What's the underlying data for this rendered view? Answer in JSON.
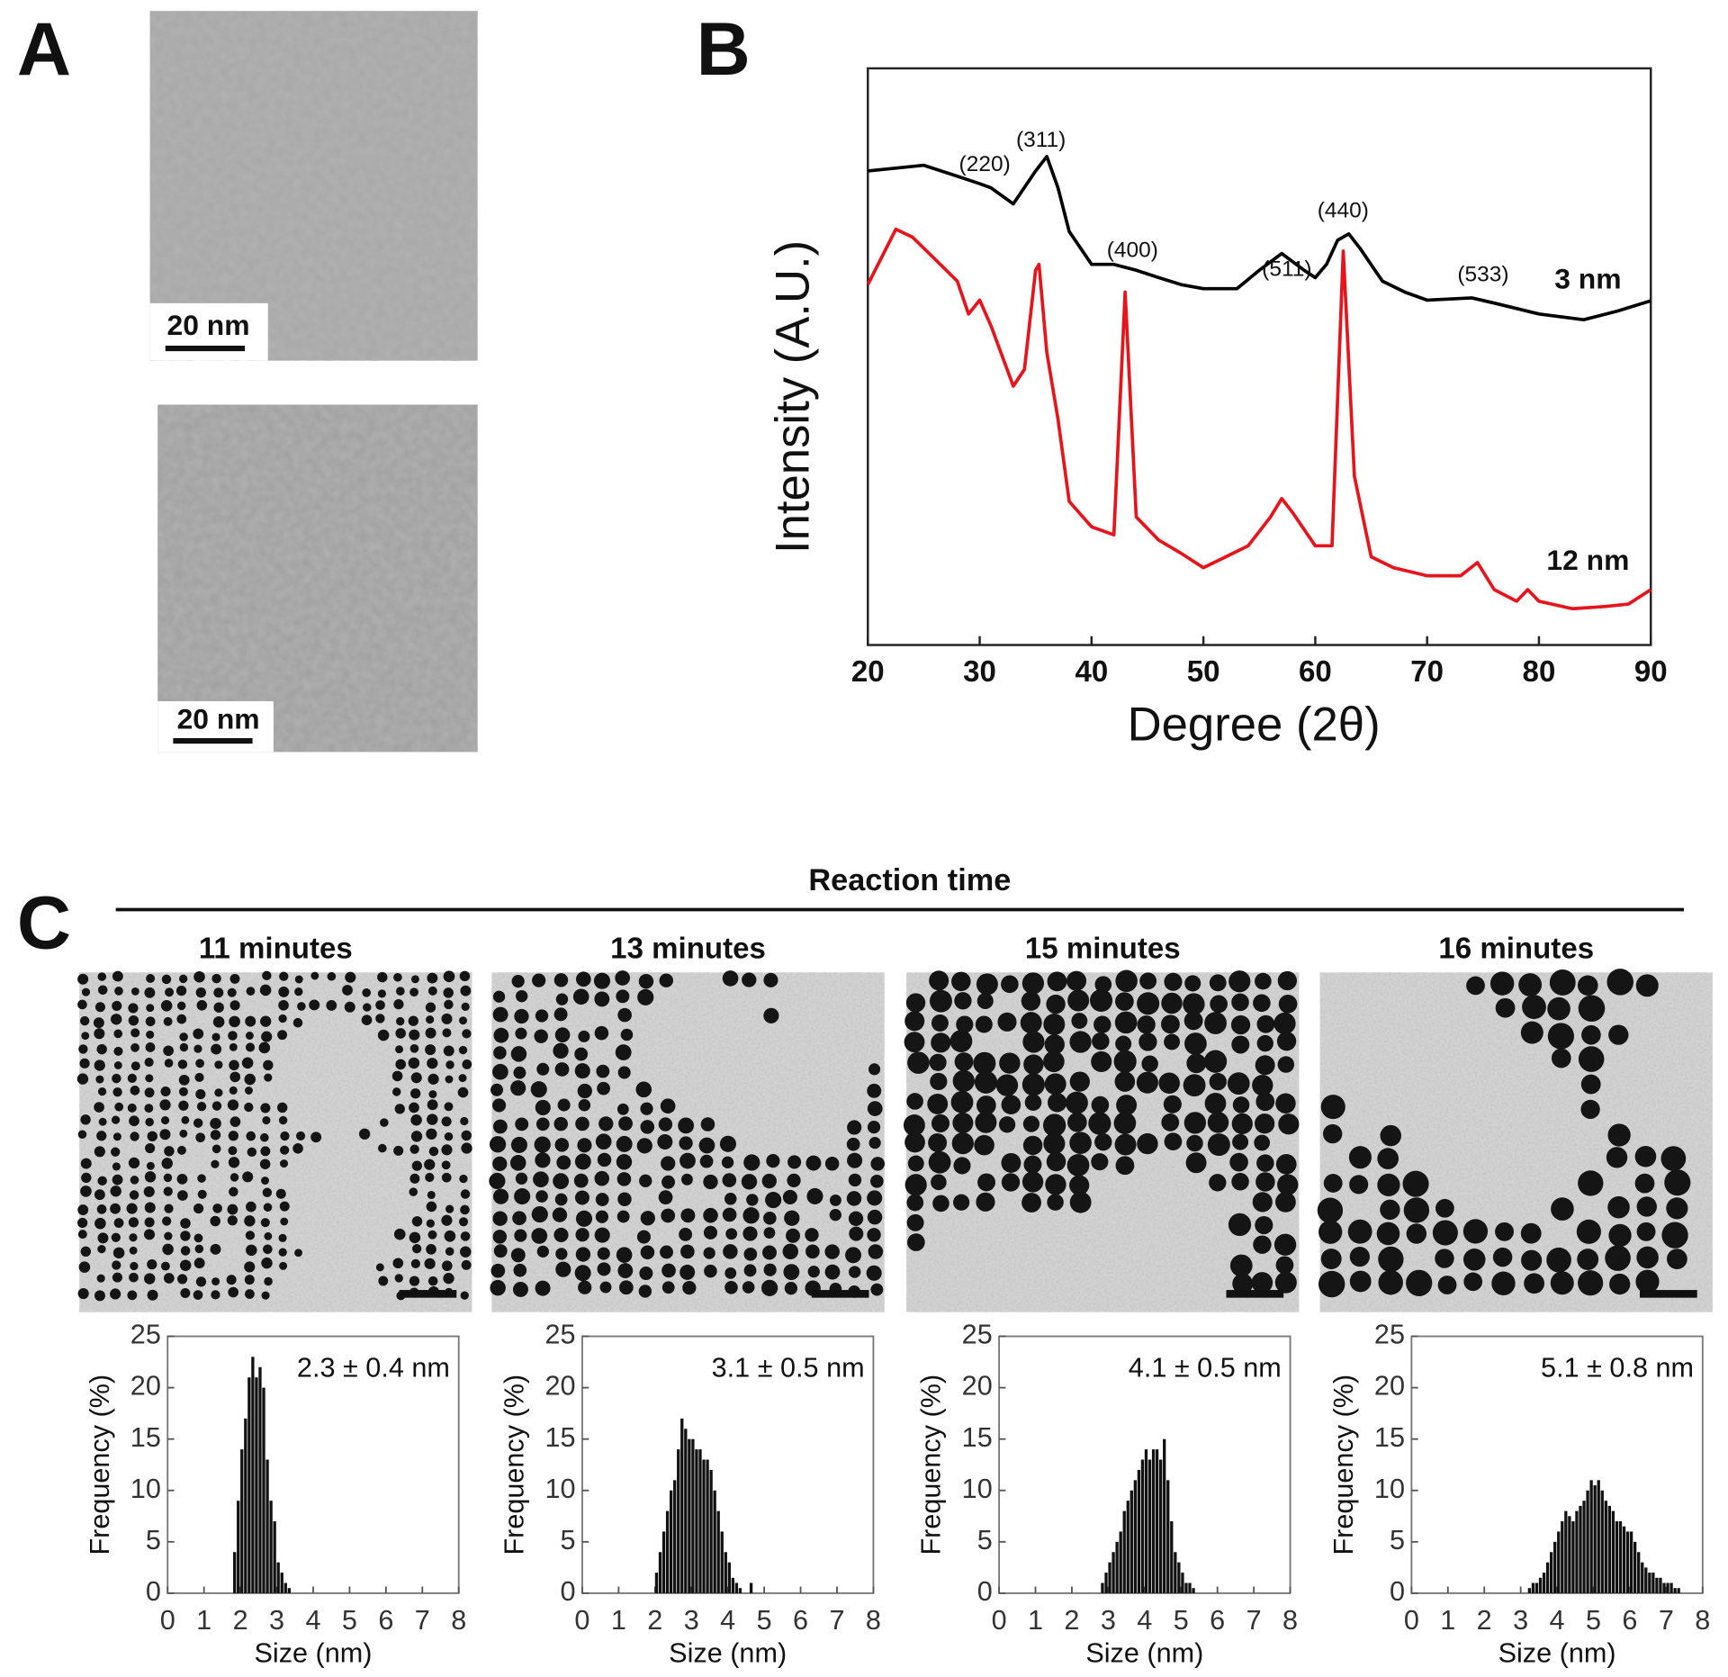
{
  "figure": {
    "panel_labels": [
      "A",
      "B",
      "C"
    ],
    "scale_bar_labels": [
      "20 nm",
      "20 nm"
    ],
    "reaction_time": "Reaction time",
    "time_labels": [
      "11 minutes",
      "13 minutes",
      "15 minutes",
      "16 minutes"
    ]
  },
  "chart_data": [
    {
      "type": "line",
      "xlabel": "Degree (2θ)",
      "ylabel": "Intensity (A.U.)",
      "xlim": [
        20,
        90
      ],
      "xticks": [
        20,
        30,
        40,
        50,
        60,
        70,
        80,
        90
      ],
      "ylim": [
        0,
        100
      ],
      "annotations": [
        "(220)",
        "(311)",
        "(400)",
        "(511)",
        "(440)",
        "(533)"
      ],
      "series": [
        {
          "name": "3 nm",
          "color": "#000000",
          "x": [
            20,
            25,
            28,
            30,
            31,
            33,
            35,
            36,
            37,
            38,
            40,
            42,
            44,
            46,
            48,
            50,
            53,
            55,
            57,
            59,
            60,
            61,
            62,
            63,
            64,
            66,
            68,
            70,
            74,
            76,
            80,
            84,
            87,
            90
          ],
          "values": [
            82.2,
            83.2,
            81.3,
            80,
            79.3,
            76.5,
            82.2,
            84.7,
            79.3,
            71.7,
            66,
            66,
            65,
            63.7,
            62.5,
            61.8,
            61.8,
            65,
            67.9,
            65,
            63.7,
            66,
            70.2,
            71.3,
            68.8,
            63.1,
            61.2,
            59.8,
            60.2,
            59.3,
            57.4,
            56.4,
            57.9,
            59.7
          ]
        },
        {
          "name": "12 nm",
          "color": "#e8141b",
          "x": [
            20,
            22.5,
            24,
            26,
            28,
            29,
            30,
            31,
            33,
            34,
            35,
            35.3,
            36,
            37,
            38,
            40,
            42,
            43,
            44,
            46,
            48,
            50,
            52,
            54,
            56,
            57,
            58,
            60,
            61.5,
            62.5,
            63.5,
            65,
            67,
            70,
            73,
            74.5,
            76,
            78,
            79,
            80,
            83,
            86,
            88,
            90
          ],
          "values": [
            62.5,
            72.1,
            70.7,
            66.9,
            63.1,
            57.4,
            59.8,
            55.4,
            44.9,
            47.8,
            65,
            66,
            50.7,
            39.2,
            24.9,
            20.5,
            19.1,
            61.2,
            22.2,
            18.2,
            15.9,
            13.4,
            15.3,
            17.2,
            22.2,
            25.4,
            22.9,
            17.2,
            17.2,
            68.3,
            29.3,
            15.3,
            13.4,
            12,
            12,
            14.3,
            9.6,
            7.6,
            9.6,
            7.6,
            6.3,
            6.7,
            7.1,
            9.6
          ]
        }
      ]
    },
    {
      "type": "histogram",
      "annotation": "2.3 ± 0.4 nm",
      "xlabel": "Size (nm)",
      "ylabel": "Frequency (%)",
      "color": "#111111",
      "xlim": [
        0,
        8
      ],
      "xticks": [
        0,
        1,
        2,
        3,
        4,
        5,
        6,
        7,
        8
      ],
      "ylim": [
        0,
        25
      ],
      "yticks": [
        0,
        5,
        10,
        15,
        20,
        25
      ],
      "bins": [
        1.8,
        1.9,
        2.0,
        2.1,
        2.2,
        2.3,
        2.4,
        2.5,
        2.6,
        2.7,
        2.8,
        2.9,
        3.0,
        3.1,
        3.2,
        3.3,
        3.4
      ],
      "counts": [
        4,
        9,
        14,
        17,
        21,
        23,
        21,
        22,
        20,
        13,
        9,
        7,
        3,
        2,
        1,
        0.5
      ]
    },
    {
      "type": "histogram",
      "annotation": "3.1 ± 0.5 nm",
      "xlabel": "Size (nm)",
      "ylabel": "Frequency (%)",
      "color": "#111111",
      "xlim": [
        0,
        8
      ],
      "xticks": [
        0,
        1,
        2,
        3,
        4,
        5,
        6,
        7,
        8
      ],
      "ylim": [
        0,
        25
      ],
      "yticks": [
        0,
        5,
        10,
        15,
        20,
        25
      ],
      "bins": [
        2.0,
        2.1,
        2.2,
        2.3,
        2.4,
        2.5,
        2.6,
        2.7,
        2.8,
        2.9,
        3.0,
        3.1,
        3.2,
        3.3,
        3.4,
        3.5,
        3.6,
        3.7,
        3.8,
        3.9,
        4.0,
        4.1,
        4.2,
        4.3,
        4.4,
        4.5,
        4.6,
        4.7
      ],
      "counts": [
        2,
        4,
        6,
        8,
        10,
        11,
        14,
        17,
        16,
        15,
        15,
        14,
        14,
        13,
        13,
        12,
        10,
        8,
        6,
        4,
        3,
        1.5,
        1,
        0.5,
        0,
        0,
        1
      ]
    },
    {
      "type": "histogram",
      "annotation": "4.1 ± 0.5 nm",
      "xlabel": "Size (nm)",
      "ylabel": "Frequency (%)",
      "color": "#111111",
      "xlim": [
        0,
        8
      ],
      "xticks": [
        0,
        1,
        2,
        3,
        4,
        5,
        6,
        7,
        8
      ],
      "ylim": [
        0,
        25
      ],
      "yticks": [
        0,
        5,
        10,
        15,
        20,
        25
      ],
      "bins": [
        2.8,
        2.9,
        3.0,
        3.1,
        3.2,
        3.3,
        3.4,
        3.5,
        3.6,
        3.7,
        3.8,
        3.9,
        4.0,
        4.1,
        4.2,
        4.3,
        4.4,
        4.5,
        4.6,
        4.7,
        4.8,
        4.9,
        5.0,
        5.1,
        5.2,
        5.3,
        5.4
      ],
      "counts": [
        1,
        2,
        3,
        4,
        5,
        6,
        8,
        9,
        10,
        11,
        12,
        13,
        14,
        13,
        14,
        14,
        13,
        15,
        11,
        7,
        4,
        3,
        2,
        1,
        1,
        0.5
      ]
    },
    {
      "type": "histogram",
      "annotation": "5.1 ± 0.8 nm",
      "xlabel": "Size (nm)",
      "ylabel": "Frequency (%)",
      "color": "#111111",
      "xlim": [
        0,
        8
      ],
      "xticks": [
        0,
        1,
        2,
        3,
        4,
        5,
        6,
        7,
        8
      ],
      "ylim": [
        0,
        25
      ],
      "yticks": [
        0,
        5,
        10,
        15,
        20,
        25
      ],
      "bins": [
        3.2,
        3.3,
        3.4,
        3.5,
        3.6,
        3.7,
        3.8,
        3.9,
        4.0,
        4.1,
        4.2,
        4.3,
        4.4,
        4.5,
        4.6,
        4.7,
        4.8,
        4.9,
        5.0,
        5.1,
        5.2,
        5.3,
        5.4,
        5.5,
        5.6,
        5.7,
        5.8,
        5.9,
        6.0,
        6.1,
        6.2,
        6.3,
        6.4,
        6.5,
        6.6,
        6.7,
        6.8,
        6.9,
        7.0,
        7.1,
        7.2,
        7.3,
        7.4
      ],
      "counts": [
        0.5,
        1,
        1,
        1.5,
        2,
        3,
        4,
        5,
        6,
        7,
        8,
        7.5,
        7,
        8,
        8.5,
        9,
        10,
        11,
        10.5,
        11,
        10,
        9,
        8.5,
        8,
        7,
        7,
        6.5,
        6,
        6,
        5,
        4,
        3,
        2.5,
        2,
        2,
        1.5,
        1.5,
        1,
        1,
        1,
        0.5,
        0.5
      ]
    }
  ]
}
